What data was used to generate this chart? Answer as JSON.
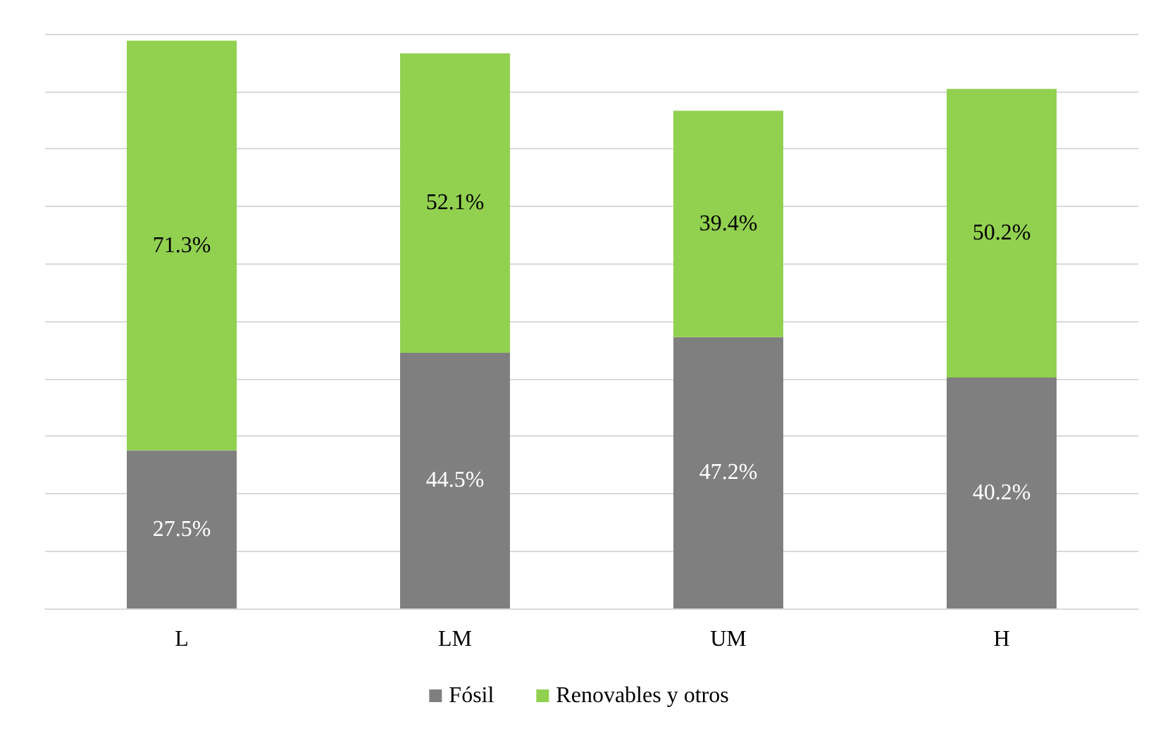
{
  "chart_data": {
    "type": "bar",
    "stacked": true,
    "categories": [
      "L",
      "LM",
      "UM",
      "H"
    ],
    "series": [
      {
        "name": "Fósil",
        "color": "#7f7f7f",
        "values": [
          27.5,
          44.5,
          47.2,
          40.2
        ],
        "value_labels": [
          "27.5%",
          "44.5%",
          "47.2%",
          "40.2%"
        ]
      },
      {
        "name": "Renovables y otros",
        "color": "#92d050",
        "values": [
          71.3,
          52.1,
          39.4,
          50.2
        ],
        "value_labels": [
          "71.3%",
          "52.1%",
          "39.4%",
          "50.2%"
        ]
      }
    ],
    "ylim": [
      0,
      100
    ],
    "yticks": [
      {
        "value": 0,
        "label": null
      },
      {
        "value": 10,
        "label": null
      },
      {
        "value": 20,
        "label": null
      },
      {
        "value": 30,
        "label": null
      },
      {
        "value": 40,
        "label": null
      },
      {
        "value": 50,
        "label": null
      },
      {
        "value": 60,
        "label": null
      },
      {
        "value": 70,
        "label": null
      },
      {
        "value": 80,
        "label": null
      },
      {
        "value": 90,
        "label": null
      },
      {
        "value": 100,
        "label": null
      }
    ],
    "grid": "y",
    "legend": "bottom"
  }
}
